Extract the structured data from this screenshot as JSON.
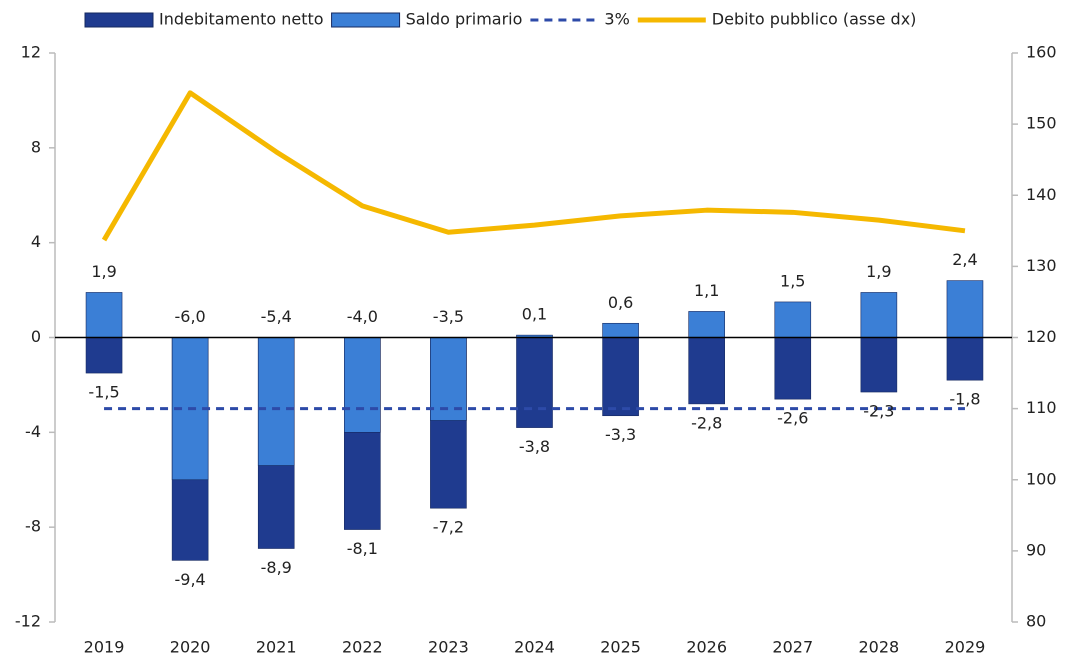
{
  "chart_data": {
    "type": "bar",
    "categories": [
      "2019",
      "2020",
      "2021",
      "2022",
      "2023",
      "2024",
      "2025",
      "2026",
      "2027",
      "2028",
      "2029"
    ],
    "series": [
      {
        "name": "Indebitamento netto",
        "type": "bar",
        "color": "#1f3b8f",
        "values": [
          -1.5,
          -9.4,
          -8.9,
          -8.1,
          -7.2,
          -3.8,
          -3.3,
          -2.8,
          -2.6,
          -2.3,
          -1.8
        ],
        "value_labels": [
          "-1,5",
          "-9,4",
          "-8,9",
          "-8,1",
          "-7,2",
          "-3,8",
          "-3,3",
          "-2,8",
          "-2,6",
          "-2,3",
          "-1,8"
        ]
      },
      {
        "name": "Saldo primario",
        "type": "bar",
        "color": "#3b7fd6",
        "values": [
          1.9,
          -6.0,
          -5.4,
          -4.0,
          -3.5,
          0.1,
          0.6,
          1.1,
          1.5,
          1.9,
          2.4
        ],
        "value_labels": [
          "1,9",
          "-6,0",
          "-5,4",
          "-4,0",
          "-3,5",
          "0,1",
          "0,6",
          "1,1",
          "1,5",
          "1,9",
          "2,4"
        ]
      },
      {
        "name": "3%",
        "type": "line",
        "line_style": "dashed",
        "color": "#2d4aa8",
        "values": [
          -3,
          -3,
          -3,
          -3,
          -3,
          -3,
          -3,
          -3,
          -3,
          -3,
          -3
        ]
      },
      {
        "name": "Debito pubblico (asse dx)",
        "type": "line",
        "axis": "y2",
        "color": "#f5b800",
        "values": [
          133.7,
          154.4,
          146.1,
          138.5,
          134.8,
          135.8,
          137.1,
          137.9,
          137.6,
          136.5,
          135.0
        ]
      }
    ],
    "ylim": [
      -12,
      12
    ],
    "yticks": [
      -12,
      -8,
      -4,
      0,
      4,
      8,
      12
    ],
    "y2lim": [
      80,
      160
    ],
    "y2ticks": [
      80,
      90,
      100,
      110,
      120,
      130,
      140,
      150,
      160
    ],
    "legend": "top"
  }
}
